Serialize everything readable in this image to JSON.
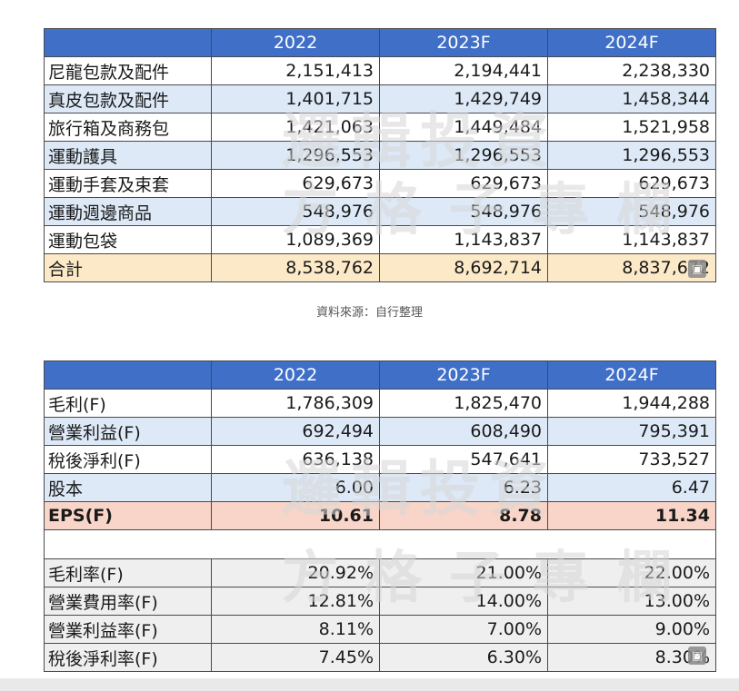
{
  "table1": {
    "headers": [
      "",
      "2022",
      "2023F",
      "2024F"
    ],
    "rows": [
      {
        "label": "尼龍包款及配件",
        "values": [
          "2,151,413",
          "2,194,441",
          "2,238,330"
        ]
      },
      {
        "label": "真皮包款及配件",
        "values": [
          "1,401,715",
          "1,429,749",
          "1,458,344"
        ]
      },
      {
        "label": "旅行箱及商務包",
        "values": [
          "1,421,063",
          "1,449,484",
          "1,521,958"
        ]
      },
      {
        "label": "運動護具",
        "values": [
          "1,296,553",
          "1,296,553",
          "1,296,553"
        ]
      },
      {
        "label": "運動手套及束套",
        "values": [
          "629,673",
          "629,673",
          "629,673"
        ]
      },
      {
        "label": "運動週邊商品",
        "values": [
          "548,976",
          "548,976",
          "548,976"
        ]
      },
      {
        "label": "運動包袋",
        "values": [
          "1,089,369",
          "1,143,837",
          "1,143,837"
        ]
      },
      {
        "label": "合計",
        "values": [
          "8,538,762",
          "8,692,714",
          "8,837,672"
        ]
      }
    ]
  },
  "source_note": "資料來源：自行整理",
  "table2": {
    "headers": [
      "",
      "2022",
      "2023F",
      "2024F"
    ],
    "rows": [
      {
        "label": "毛利(F)",
        "values": [
          "1,786,309",
          "1,825,470",
          "1,944,288"
        ]
      },
      {
        "label": "營業利益(F)",
        "values": [
          "692,494",
          "608,490",
          "795,391"
        ]
      },
      {
        "label": "稅後淨利(F)",
        "values": [
          "636,138",
          "547,641",
          "733,527"
        ]
      },
      {
        "label": "股本",
        "values": [
          "6.00",
          "6.23",
          "6.47"
        ]
      },
      {
        "label": "EPS(F)",
        "values": [
          "10.61",
          "8.78",
          "11.34"
        ]
      }
    ],
    "ratio_rows": [
      {
        "label": "毛利率(F)",
        "values": [
          "20.92%",
          "21.00%",
          "22.00%"
        ]
      },
      {
        "label": "營業費用率(F)",
        "values": [
          "12.81%",
          "14.00%",
          "13.00%"
        ]
      },
      {
        "label": "營業利益率(F)",
        "values": [
          "8.11%",
          "7.00%",
          "9.00%"
        ]
      },
      {
        "label": "稅後淨利率(F)",
        "values": [
          "7.45%",
          "6.30%",
          "8.30%"
        ]
      }
    ]
  },
  "watermark": {
    "line1": "邏輯投資",
    "line2": "方格子專欄"
  },
  "colors": {
    "header_bg": "#3f6fc7",
    "alt_row": "#dde9f7",
    "total_row": "#fce9c7",
    "eps_row": "#f8d5c8",
    "ratio_row": "#efefef"
  }
}
